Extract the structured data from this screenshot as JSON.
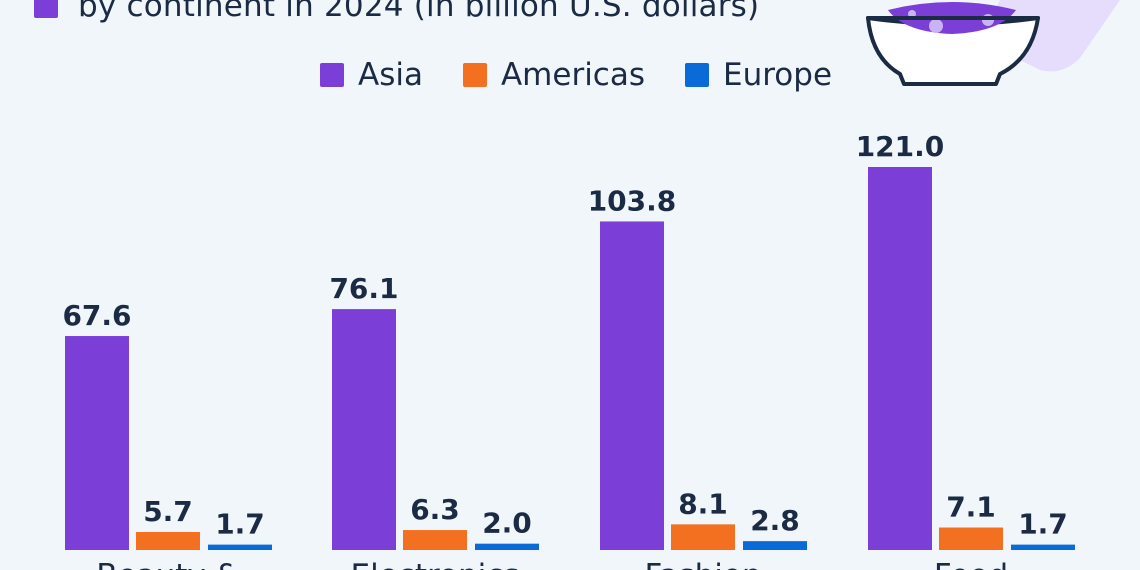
{
  "header": {
    "subtitle": "by continent in 2024 (in billion U.S. dollars)",
    "subtitle_marker_color": "#7b3fd8"
  },
  "illustration": {
    "icon": "rice-bowl-icon"
  },
  "chart_data": {
    "type": "bar",
    "categories": [
      "Beauty &",
      "Electronics",
      "Fashion",
      "Food"
    ],
    "series": [
      {
        "name": "Asia",
        "values": [
          67.6,
          76.1,
          103.8,
          121.0
        ],
        "color": "#7b3fd8"
      },
      {
        "name": "Americas",
        "values": [
          5.7,
          6.3,
          8.1,
          7.1
        ],
        "color": "#f37021"
      },
      {
        "name": "Europe",
        "values": [
          1.7,
          2.0,
          2.8,
          1.7
        ],
        "color": "#0a6bd8"
      }
    ],
    "ylim": [
      0,
      132
    ],
    "grid": false,
    "legend_position": "top-center",
    "value_labels": [
      "67.6",
      "5.7",
      "1.7",
      "76.1",
      "6.3",
      "2.0",
      "103.8",
      "8.1",
      "2.8",
      "121.0",
      "7.1",
      "1.7"
    ]
  }
}
